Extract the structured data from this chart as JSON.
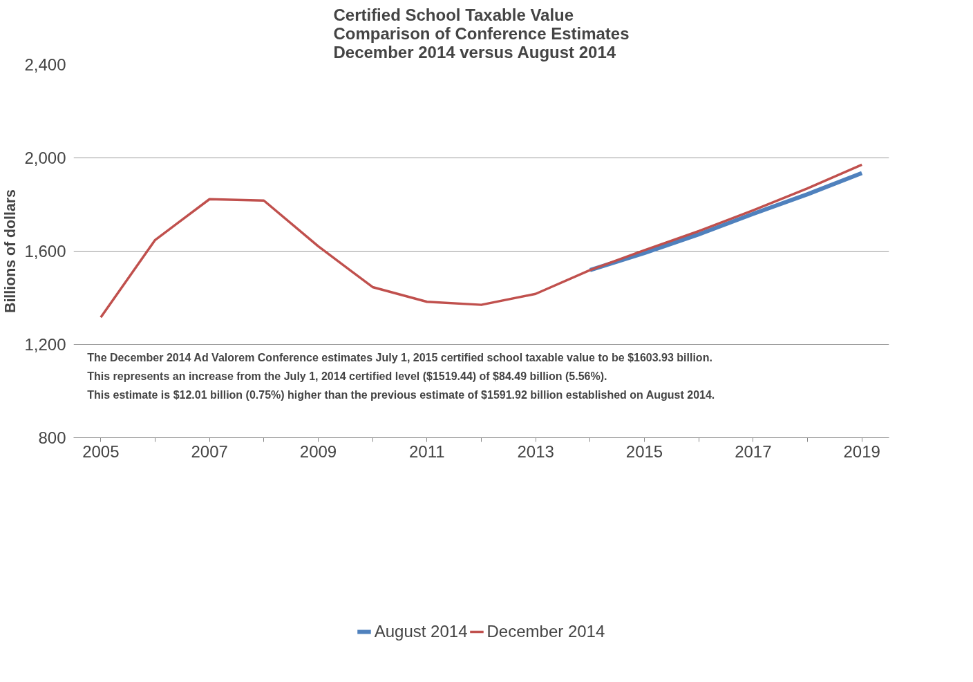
{
  "chart_data": {
    "type": "line",
    "title": "Certified School Taxable Value\nComparison of Conference Estimates\nDecember 2014 versus August 2014",
    "ylabel": "Billions of dollars",
    "x": [
      2005,
      2006,
      2007,
      2008,
      2009,
      2010,
      2011,
      2012,
      2013,
      2014,
      2015,
      2016,
      2017,
      2018,
      2019
    ],
    "series": [
      {
        "name": "August 2014",
        "color": "#4f81bd",
        "values": [
          null,
          null,
          null,
          null,
          null,
          null,
          null,
          null,
          null,
          1519,
          1592,
          1672,
          1760,
          1844,
          1935
        ]
      },
      {
        "name": "December 2014",
        "color": "#c0504d",
        "values": [
          1316,
          1648,
          1823,
          1817,
          1621,
          1446,
          1383,
          1370,
          1417,
          1519,
          1604,
          1686,
          1775,
          1869,
          1971
        ]
      }
    ],
    "xlim": [
      2004.5,
      2019.5
    ],
    "xticks": [
      2005,
      {
        "value": 2006,
        "label": null
      },
      2007,
      {
        "value": 2008,
        "label": null
      },
      2009,
      {
        "value": 2010,
        "label": null
      },
      2011,
      {
        "value": 2012,
        "label": null
      },
      2013,
      {
        "value": 2014,
        "label": null
      },
      2015,
      {
        "value": 2016,
        "label": null
      },
      2017,
      {
        "value": 2018,
        "label": null
      },
      2019
    ],
    "ylim": [
      800,
      2400
    ],
    "yticks": [
      {
        "value": 800,
        "label": "800"
      },
      {
        "value": 1200,
        "label": "1,200"
      },
      {
        "value": 1600,
        "label": "1,600"
      },
      {
        "value": 2000,
        "label": "2,000"
      },
      {
        "value": 2400,
        "label": "2,400"
      }
    ],
    "annotations": [
      "The December 2014 Ad Valorem Conference estimates  July 1, 2015 certified school taxable value to be $1603.93 billion.",
      "This represents an increase from the  July 1, 2014 certified level ($1519.44) of $84.49 billion (5.56%).",
      "This estimate is $12.01 billion (0.75%) higher than the previous estimate of $1591.92 billion established on August 2014."
    ],
    "grid": "y",
    "legend": "bottom",
    "marker": "none",
    "line_style": "solid"
  }
}
